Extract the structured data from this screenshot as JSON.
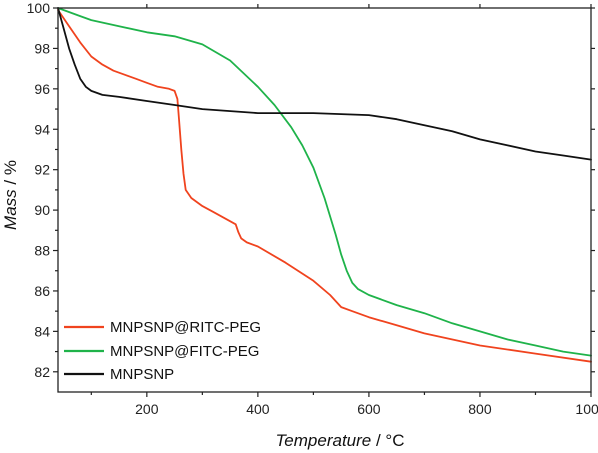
{
  "chart_data": {
    "type": "line",
    "xlabel": {
      "italic": "Temperature",
      "rest": " / °C"
    },
    "ylabel": {
      "italic": "Mass",
      "rest": " / %"
    },
    "xlim": [
      40,
      1000
    ],
    "ylim": [
      81,
      100
    ],
    "xticks": [
      200,
      400,
      600,
      800,
      1000
    ],
    "xtick_labels": [
      "200",
      "400",
      "600",
      "800",
      "1000"
    ],
    "yticks": [
      82,
      84,
      86,
      88,
      90,
      92,
      94,
      96,
      98,
      100
    ],
    "ytick_labels": [
      "82",
      "84",
      "86",
      "88",
      "90",
      "92",
      "94",
      "96",
      "98",
      "100"
    ],
    "grid": false,
    "legend_position": "bottom-left",
    "series": [
      {
        "name": "MNPSNP@RITC-PEG",
        "color": "#f0431e",
        "x": [
          40,
          60,
          80,
          100,
          120,
          140,
          160,
          180,
          200,
          220,
          240,
          250,
          255,
          258,
          262,
          266,
          270,
          280,
          300,
          320,
          340,
          360,
          365,
          370,
          380,
          400,
          450,
          500,
          530,
          550,
          570,
          600,
          650,
          700,
          800,
          900,
          1000
        ],
        "y": [
          99.9,
          99.1,
          98.3,
          97.6,
          97.2,
          96.9,
          96.7,
          96.5,
          96.3,
          96.1,
          96.0,
          95.9,
          95.5,
          94.5,
          93.0,
          91.8,
          91.0,
          90.6,
          90.2,
          89.9,
          89.6,
          89.3,
          88.9,
          88.6,
          88.4,
          88.2,
          87.4,
          86.5,
          85.8,
          85.2,
          85.0,
          84.7,
          84.3,
          83.9,
          83.3,
          82.9,
          82.5
        ]
      },
      {
        "name": "MNPSNP@FITC-PEG",
        "color": "#1fb34a",
        "x": [
          40,
          80,
          100,
          150,
          200,
          250,
          300,
          350,
          400,
          430,
          460,
          480,
          500,
          520,
          540,
          550,
          560,
          570,
          580,
          600,
          650,
          700,
          750,
          800,
          850,
          900,
          950,
          1000
        ],
        "y": [
          100.0,
          99.6,
          99.4,
          99.1,
          98.8,
          98.6,
          98.2,
          97.4,
          96.1,
          95.2,
          94.1,
          93.2,
          92.1,
          90.6,
          88.8,
          87.8,
          87.0,
          86.4,
          86.1,
          85.8,
          85.3,
          84.9,
          84.4,
          84.0,
          83.6,
          83.3,
          83.0,
          82.8
        ]
      },
      {
        "name": "MNPSNP",
        "color": "#111111",
        "x": [
          40,
          50,
          60,
          70,
          80,
          90,
          100,
          120,
          150,
          200,
          250,
          300,
          400,
          500,
          600,
          650,
          700,
          750,
          800,
          850,
          900,
          950,
          1000
        ],
        "y": [
          100.0,
          99.0,
          98.0,
          97.2,
          96.5,
          96.1,
          95.9,
          95.7,
          95.6,
          95.4,
          95.2,
          95.0,
          94.8,
          94.8,
          94.7,
          94.5,
          94.2,
          93.9,
          93.5,
          93.2,
          92.9,
          92.7,
          92.5
        ]
      }
    ]
  }
}
